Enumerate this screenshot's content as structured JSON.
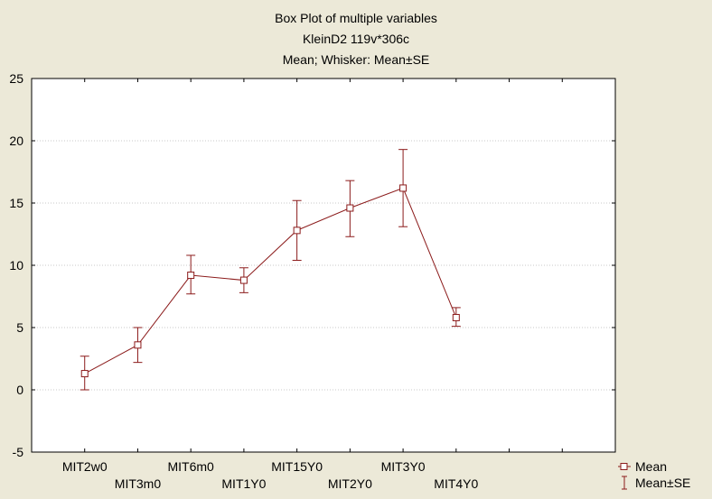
{
  "chart_data": {
    "type": "line",
    "title": "Box Plot of multiple variables",
    "subtitle_lines": [
      "KleinD2 119v*306c",
      "Mean; Whisker: Mean±SE"
    ],
    "xlabel": "",
    "ylabel": "",
    "categories": [
      "MIT2w0",
      "MIT3m0",
      "MIT6m0",
      "MIT1Y0",
      "MIT15Y0",
      "MIT2Y0",
      "MIT3Y0",
      "MIT4Y0"
    ],
    "series": [
      {
        "name": "Mean",
        "values": [
          1.3,
          3.6,
          9.2,
          8.8,
          12.8,
          14.6,
          16.2,
          5.8
        ],
        "se_low": [
          0.0,
          2.2,
          7.7,
          7.8,
          10.4,
          12.3,
          13.1,
          5.1
        ],
        "se_high": [
          2.7,
          5.0,
          10.8,
          9.8,
          15.2,
          16.8,
          19.3,
          6.6
        ]
      }
    ],
    "ylim": [
      -5,
      25
    ],
    "yticks": [
      -5,
      0,
      5,
      10,
      15,
      20,
      25
    ],
    "grid": true,
    "legend": {
      "placement": "bottom-right",
      "entries": [
        "Mean",
        "Mean±SE"
      ]
    },
    "colors": {
      "series": "#8b1a1a",
      "background": "#ece9d8",
      "plot_area": "#ffffff",
      "grid": "#c8c8c8"
    }
  }
}
